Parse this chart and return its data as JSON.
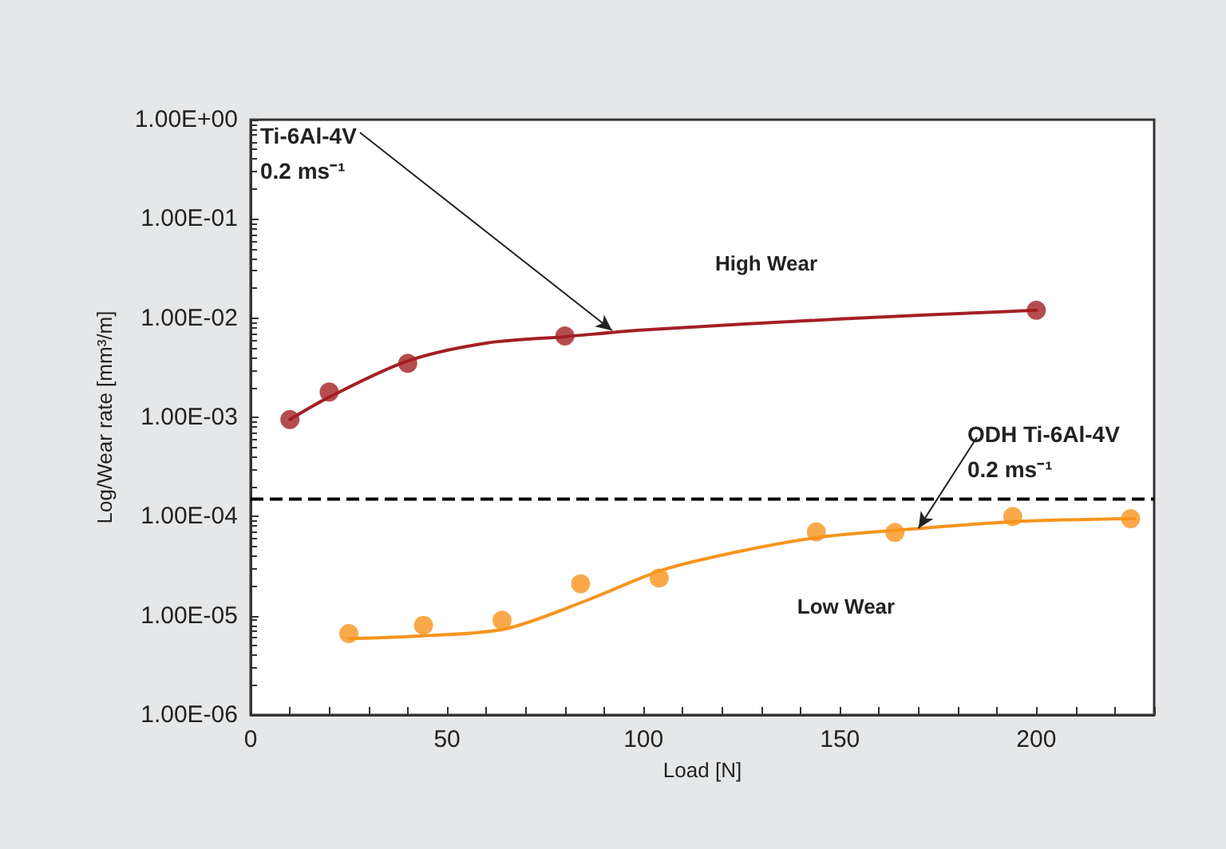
{
  "chart_data": {
    "type": "scatter",
    "xlabel": "Load [N]",
    "ylabel": "Log/Wear rate [mm³/m]",
    "xlim": [
      0,
      230
    ],
    "xticks": [
      0,
      50,
      100,
      150,
      200
    ],
    "ylim": [
      1e-06,
      1
    ],
    "yticks": [
      {
        "value": 1,
        "label": "1.00E+00"
      },
      {
        "value": 0.1,
        "label": "1.00E-01"
      },
      {
        "value": 0.01,
        "label": "1.00E-02"
      },
      {
        "value": 0.001,
        "label": "1.00E-03"
      },
      {
        "value": 0.0001,
        "label": "1.00E-04"
      },
      {
        "value": 1e-05,
        "label": "1.00E-05"
      },
      {
        "value": 1e-06,
        "label": "1.00E-06"
      }
    ],
    "log": "y",
    "marker": "circle",
    "series": [
      {
        "color": "#a31f24",
        "x": [
          10,
          20,
          40,
          80,
          200
        ],
        "values": [
          0.00095,
          0.0018,
          0.0035,
          0.0066,
          0.012
        ]
      },
      {
        "type": "line",
        "color": "#a31f24",
        "marker": "none",
        "x": [
          10,
          20,
          40,
          60,
          80,
          100,
          150,
          200
        ],
        "values": [
          0.00095,
          0.0016,
          0.0037,
          0.0056,
          0.0065,
          0.0076,
          0.0098,
          0.012
        ]
      },
      {
        "color": "#f7941d",
        "x": [
          25,
          44,
          64,
          84,
          104,
          144,
          164,
          194,
          224
        ],
        "values": [
          6.6e-06,
          8e-06,
          9e-06,
          2.1e-05,
          2.4e-05,
          7e-05,
          6.9e-05,
          0.0001,
          9.5e-05
        ]
      },
      {
        "type": "line",
        "color": "#f7941d",
        "marker": "none",
        "x": [
          25,
          45,
          65,
          85,
          105,
          125,
          145,
          165,
          195,
          225
        ],
        "values": [
          5.9e-06,
          6.3e-06,
          7.4e-06,
          1.4e-05,
          2.9e-05,
          4.5e-05,
          6.2e-05,
          7.3e-05,
          8.9e-05,
          9.5e-05
        ]
      }
    ],
    "ref_lines": [
      {
        "axis": "y",
        "value": 0.00015,
        "color": "#000000",
        "line_style": "dashed"
      }
    ],
    "annotations": [
      {
        "text": "Ti-6Al-4V\n0.2 ms⁻¹",
        "x": 92,
        "y": 0.0075
      },
      {
        "text": "ODH Ti-6Al-4V\n0.2 ms⁻¹",
        "x": 170,
        "y": 7.6e-05
      },
      "High Wear",
      "Low Wear"
    ]
  }
}
